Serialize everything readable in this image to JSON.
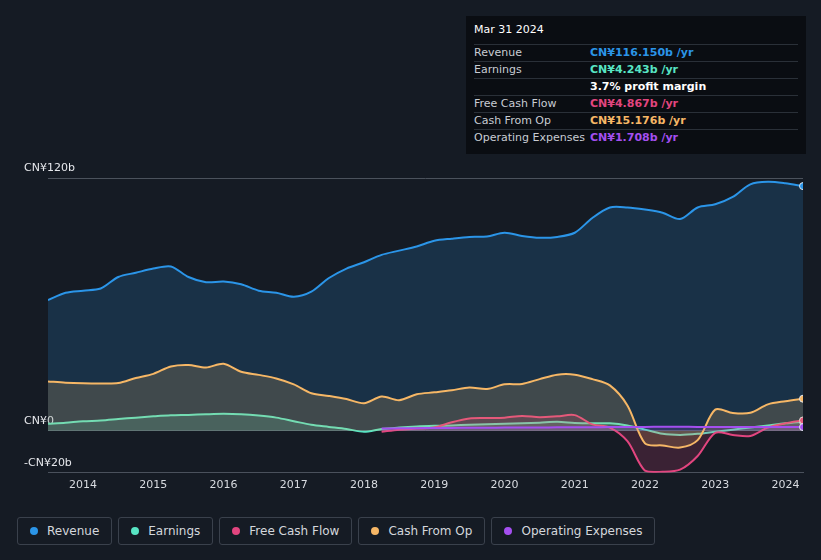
{
  "chart_data": {
    "type": "line",
    "x": [
      2013.5,
      2013.75,
      2014,
      2014.25,
      2014.5,
      2014.75,
      2015,
      2015.25,
      2015.5,
      2015.75,
      2016,
      2016.25,
      2016.5,
      2016.75,
      2017,
      2017.25,
      2017.5,
      2017.75,
      2018,
      2018.25,
      2018.5,
      2018.75,
      2019,
      2019.25,
      2019.5,
      2019.75,
      2020,
      2020.25,
      2020.5,
      2020.75,
      2021,
      2021.25,
      2021.5,
      2021.75,
      2022,
      2022.25,
      2022.5,
      2022.75,
      2023,
      2023.25,
      2023.5,
      2023.75,
      2024,
      2024.25
    ],
    "series": [
      {
        "name": "Revenue",
        "color": "#2b95e8",
        "values": [
          62,
          65.5,
          66.5,
          67.5,
          73,
          75,
          77,
          78,
          73,
          70.5,
          70.8,
          69.5,
          66.5,
          65.5,
          63.6,
          66,
          72.5,
          77,
          80,
          83.5,
          85.5,
          87.5,
          90.2,
          91.2,
          92,
          92.2,
          94,
          92.5,
          91.6,
          92,
          94,
          101,
          106,
          106,
          105,
          103.5,
          100.5,
          106,
          107.5,
          111,
          117,
          118.2,
          117.5,
          116.15
        ]
      },
      {
        "name": "Earnings",
        "color": "#58e5c4",
        "values": [
          3.3,
          3.8,
          4.5,
          4.8,
          5.5,
          6.2,
          6.8,
          7.3,
          7.5,
          7.8,
          8,
          7.8,
          7.2,
          6.2,
          4.5,
          2.8,
          1.8,
          0.8,
          -0.5,
          0.8,
          1.5,
          2,
          2.3,
          2.5,
          2.8,
          3,
          3.3,
          3.5,
          3.8,
          4.2,
          3.7,
          3.5,
          3.5,
          2.5,
          0.5,
          -1.5,
          -2,
          -1.5,
          -0.5,
          0.5,
          1.5,
          2.5,
          3.5,
          4.243
        ]
      },
      {
        "name": "Free Cash Flow",
        "color": "#e2457f",
        "values": [
          null,
          null,
          null,
          null,
          null,
          null,
          null,
          null,
          null,
          null,
          null,
          null,
          null,
          null,
          null,
          null,
          null,
          null,
          null,
          -0.5,
          0.5,
          1,
          1.5,
          4,
          5.8,
          6,
          6.2,
          7,
          6.4,
          6.8,
          7.4,
          3,
          1.5,
          -5,
          -19,
          -19.5,
          -18.5,
          -12,
          -1,
          -2,
          -2.5,
          1.5,
          3.5,
          4.867
        ]
      },
      {
        "name": "Cash From Op",
        "color": "#f6b766",
        "values": [
          23.4,
          22.8,
          22.5,
          22.4,
          22.6,
          25,
          27,
          30.5,
          31.2,
          30,
          31.8,
          28,
          26.5,
          24.8,
          22,
          17.8,
          16.5,
          15,
          13,
          16.2,
          14.5,
          17.3,
          18.2,
          19.2,
          20.5,
          19.8,
          22,
          22.2,
          24.5,
          26.6,
          26.6,
          24.5,
          21.5,
          12,
          -6,
          -7,
          -8,
          -4.5,
          10,
          8.4,
          8.5,
          12.5,
          14,
          15.176
        ]
      },
      {
        "name": "Operating Expenses",
        "color": "#a44ff0",
        "values": [
          null,
          null,
          null,
          null,
          null,
          null,
          null,
          null,
          null,
          null,
          null,
          null,
          null,
          null,
          null,
          null,
          null,
          null,
          null,
          1.0,
          1.1,
          1.2,
          1.3,
          1.3,
          1.4,
          1.4,
          1.5,
          1.5,
          1.5,
          1.6,
          1.6,
          1.6,
          1.7,
          1.8,
          1.8,
          1.9,
          1.9,
          1.8,
          1.8,
          1.7,
          1.7,
          1.7,
          1.7,
          1.708
        ]
      }
    ],
    "xlim": [
      2013.5,
      2024.25
    ],
    "xticks": [
      2014,
      2015,
      2016,
      2017,
      2018,
      2019,
      2020,
      2021,
      2022,
      2023,
      2024
    ],
    "ylim": [
      -20,
      120
    ],
    "yticks": [
      {
        "value": -20,
        "label": "-CN¥20b"
      },
      {
        "value": 0,
        "label": "CN¥0"
      },
      {
        "value": 120,
        "label": "CN¥120b"
      }
    ],
    "grid": true,
    "legend": "bottom",
    "annotations": [
      {
        "title": "Mar 31 2024",
        "rows": [
          {
            "label": "Revenue",
            "value": "CN¥116.150b /yr",
            "color": "#2b95e8"
          },
          {
            "label": "Earnings",
            "value": "CN¥4.243b /yr",
            "color": "#58e5c4"
          },
          {
            "value": "3.7% profit margin"
          },
          {
            "label": "Free Cash Flow",
            "value": "CN¥4.867b /yr",
            "color": "#e2457f"
          },
          {
            "label": "Cash From Op",
            "value": "CN¥15.176b /yr",
            "color": "#f6b766"
          },
          {
            "label": "Operating Expenses",
            "value": "CN¥1.708b /yr",
            "color": "#a44ff0"
          }
        ]
      }
    ]
  }
}
